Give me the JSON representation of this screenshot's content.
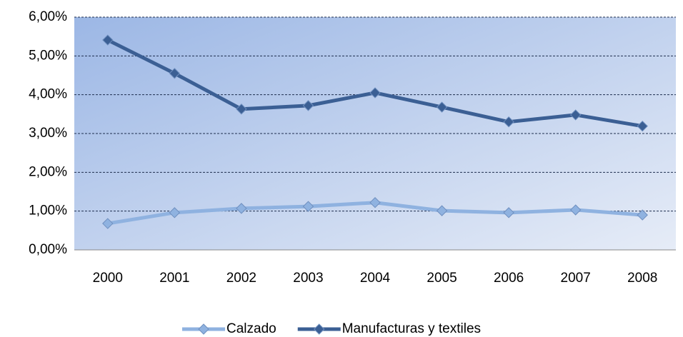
{
  "chart_data": {
    "type": "line",
    "categories": [
      "2000",
      "2001",
      "2002",
      "2003",
      "2004",
      "2005",
      "2006",
      "2007",
      "2008"
    ],
    "series": [
      {
        "name": "Calzado",
        "color": "#8fb2e0",
        "values": [
          0.68,
          0.96,
          1.07,
          1.12,
          1.22,
          1.01,
          0.96,
          1.03,
          0.9
        ]
      },
      {
        "name": "Manufacturas y textiles",
        "color": "#3b5f94",
        "values": [
          5.41,
          4.55,
          3.63,
          3.72,
          4.05,
          3.68,
          3.3,
          3.48,
          3.19
        ]
      }
    ],
    "ylim": [
      0,
      6
    ],
    "yticks": [
      {
        "value": 0,
        "label": "0,00%"
      },
      {
        "value": 1,
        "label": "1,00%"
      },
      {
        "value": 2,
        "label": "2,00%"
      },
      {
        "value": 3,
        "label": "3,00%"
      },
      {
        "value": 4,
        "label": "4,00%"
      },
      {
        "value": 5,
        "label": "5,00%"
      },
      {
        "value": 6,
        "label": "6,00%"
      }
    ],
    "grid": true,
    "legend": "bottom"
  }
}
